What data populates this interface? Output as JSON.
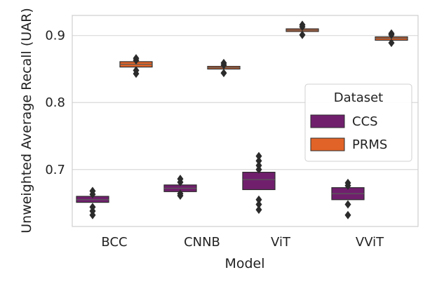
{
  "chart_data": {
    "type": "boxen",
    "title": "",
    "xlabel": "Model",
    "ylabel": "Unweighted Average Recall (UAR)",
    "categories": [
      "BCC",
      "CNNB",
      "ViT",
      "VViT"
    ],
    "ylim": [
      0.615,
      0.93
    ],
    "yticks": [
      0.7,
      0.8,
      0.9
    ],
    "ytick_labels": [
      "0.7",
      "0.8",
      "0.9"
    ],
    "grid": true,
    "legend": {
      "title": "Dataset",
      "position": "center-right"
    },
    "series": [
      {
        "name": "CCS",
        "color": "#701f6d",
        "boxes": [
          {
            "category": "BCC",
            "q1": 0.651,
            "median": 0.655,
            "q3": 0.66,
            "outliers": [
              0.632,
              0.638,
              0.644,
              0.663,
              0.668
            ]
          },
          {
            "category": "CNNB",
            "q1": 0.667,
            "median": 0.672,
            "q3": 0.677,
            "outliers": [
              0.661,
              0.664,
              0.681,
              0.686
            ]
          },
          {
            "category": "ViT",
            "q1": 0.67,
            "median": 0.685,
            "q3": 0.696,
            "outliers": [
              0.64,
              0.648,
              0.655,
              0.7,
              0.706,
              0.713,
              0.72
            ]
          },
          {
            "category": "VViT",
            "q1": 0.655,
            "median": 0.664,
            "q3": 0.673,
            "outliers": [
              0.632,
              0.648,
              0.676,
              0.68
            ]
          }
        ]
      },
      {
        "name": "PRMS",
        "color": "#e16327",
        "boxes": [
          {
            "category": "BCC",
            "q1": 0.853,
            "median": 0.857,
            "q3": 0.861,
            "outliers": [
              0.843,
              0.848,
              0.863,
              0.866
            ]
          },
          {
            "category": "CNNB",
            "q1": 0.85,
            "median": 0.852,
            "q3": 0.854,
            "outliers": [
              0.844,
              0.856,
              0.859
            ]
          },
          {
            "category": "ViT",
            "q1": 0.906,
            "median": 0.908,
            "q3": 0.91,
            "outliers": [
              0.901,
              0.913,
              0.916
            ]
          },
          {
            "category": "VViT",
            "q1": 0.893,
            "median": 0.896,
            "q3": 0.898,
            "outliers": [
              0.889,
              0.901,
              0.903
            ]
          }
        ]
      }
    ]
  }
}
